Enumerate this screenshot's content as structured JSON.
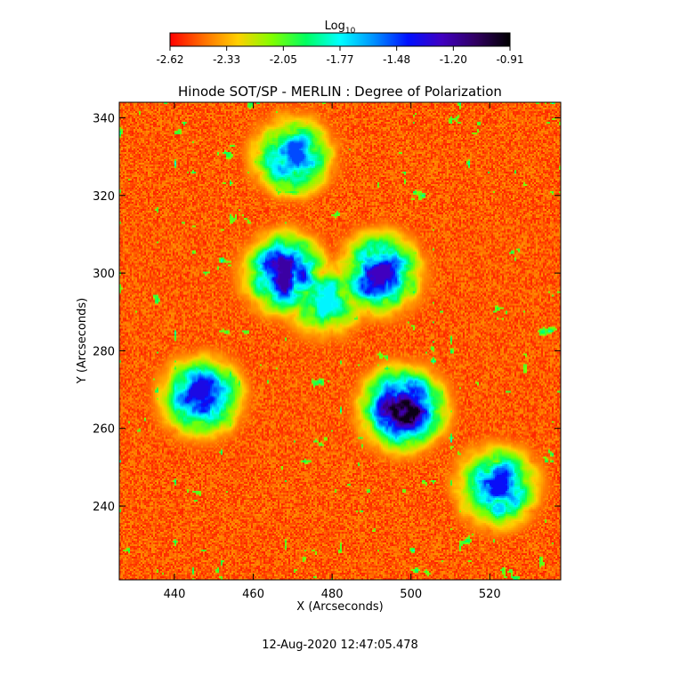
{
  "colorbar": {
    "label_main": "Log",
    "label_sub": "10",
    "ticks": [
      "-2.62",
      "-2.33",
      "-2.05",
      "-1.77",
      "-1.48",
      "-1.20",
      "-0.91"
    ],
    "range": [
      -2.62,
      -0.91
    ],
    "colormap": [
      "#ff0000",
      "#ff7000",
      "#ffd000",
      "#80ff00",
      "#00ff60",
      "#00ffff",
      "#0090ff",
      "#0010ff",
      "#4000c0",
      "#300060",
      "#000000"
    ]
  },
  "timestamp": "12-Aug-2020 12:47:05.478",
  "chart_data": {
    "type": "heatmap",
    "title": "Hinode SOT/SP - MERLIN : Degree of Polarization",
    "xlabel": "X (Arcseconds)",
    "ylabel": "Y (Arcseconds)",
    "xlim": [
      426,
      538
    ],
    "ylim": [
      221,
      344
    ],
    "x_ticks": [
      440,
      460,
      480,
      500,
      520
    ],
    "y_ticks": [
      240,
      260,
      280,
      300,
      320,
      340
    ],
    "value_scale": "log10",
    "features": [
      {
        "x": 478,
        "y": 293,
        "value": -1.75
      },
      {
        "x": 468,
        "y": 300,
        "value": -1.2
      },
      {
        "x": 492,
        "y": 300,
        "value": -1.25
      },
      {
        "x": 498,
        "y": 265,
        "value": -0.95
      },
      {
        "x": 447,
        "y": 268,
        "value": -1.35
      },
      {
        "x": 522,
        "y": 245,
        "value": -1.4
      },
      {
        "x": 470,
        "y": 330,
        "value": -1.5
      }
    ]
  }
}
